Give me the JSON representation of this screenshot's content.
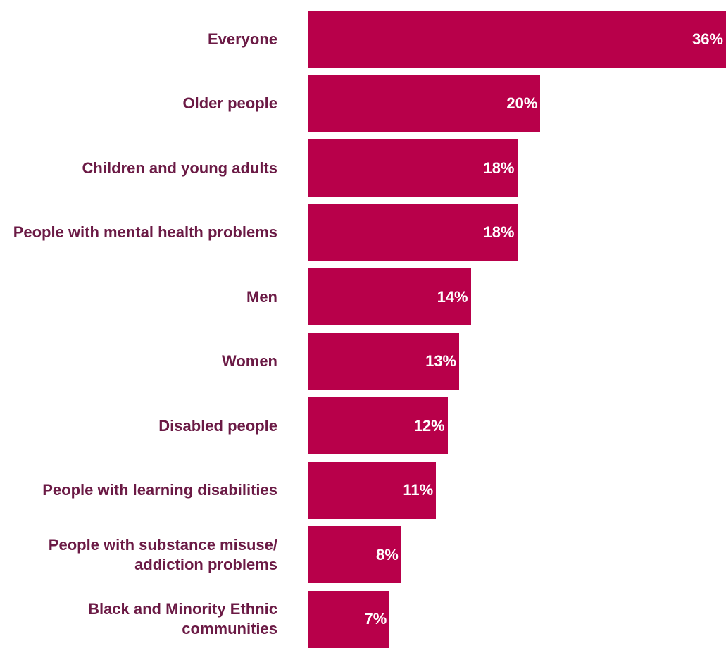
{
  "colors": {
    "bar": "#b8004a",
    "category_label": "#6b1a45",
    "value_label": "#ffffff",
    "background": "#ffffff"
  },
  "chart_data": {
    "type": "bar",
    "orientation": "horizontal",
    "title": "",
    "xlabel": "",
    "ylabel": "",
    "grid": false,
    "legend": "none",
    "xlim": [
      0,
      36
    ],
    "categories": [
      "Everyone",
      "Older people",
      "Children and young adults",
      "People with mental health problems",
      "Men",
      "Women",
      "Disabled people",
      "People with learning disabilities",
      "People with substance misuse/ addiction problems",
      "Black and Minority Ethnic communities"
    ],
    "values": [
      36,
      20,
      18,
      18,
      14,
      13,
      12,
      11,
      8,
      7
    ],
    "value_labels": [
      "36%",
      "20%",
      "18%",
      "18%",
      "14%",
      "13%",
      "12%",
      "11%",
      "8%",
      "7%"
    ]
  }
}
